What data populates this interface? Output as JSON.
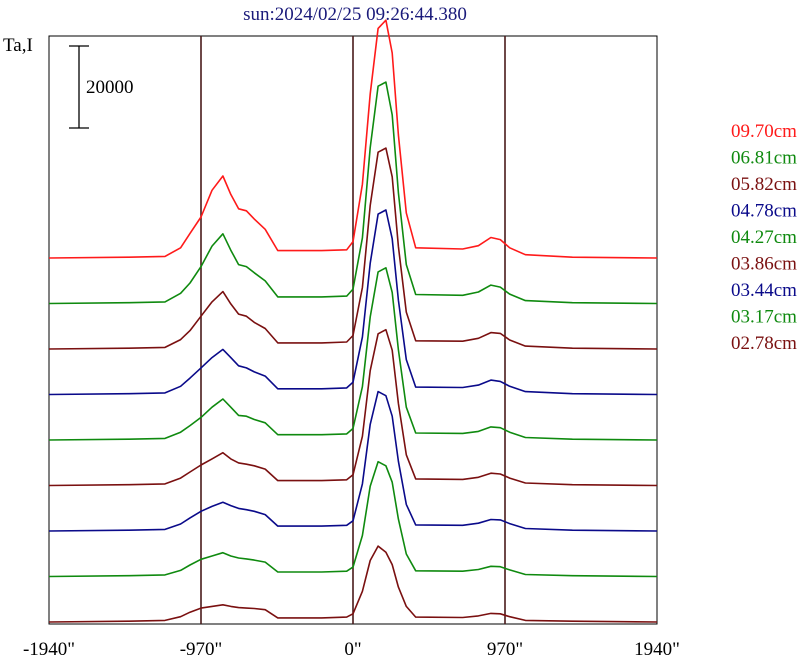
{
  "chart_data": {
    "type": "line",
    "title": "sun:2024/02/25 09:26:44.380",
    "ylabel": "Ta,I",
    "xlabel": "",
    "scale_bar_label": "20000",
    "scale_bar_value": 20000,
    "xlim": [
      -1940,
      1940
    ],
    "x_ticks": [
      -1940,
      -970,
      0,
      970,
      1940
    ],
    "x_tick_labels": [
      "-1940\"",
      "-970\"",
      "0\"",
      "970\"",
      "1940\""
    ],
    "vertical_markers": [
      -970,
      0,
      970
    ],
    "grid": false,
    "legend_placement": "right",
    "series": [
      {
        "name": "09.70cm",
        "color": "#ff1a1a",
        "baseline": 0,
        "points": [
          [
            -1940,
            0
          ],
          [
            -1430,
            200
          ],
          [
            -1200,
            400
          ],
          [
            -1100,
            2500
          ],
          [
            -1040,
            6000
          ],
          [
            -970,
            10000
          ],
          [
            -900,
            16500
          ],
          [
            -830,
            20000
          ],
          [
            -780,
            15500
          ],
          [
            -730,
            12000
          ],
          [
            -680,
            11500
          ],
          [
            -630,
            9500
          ],
          [
            -560,
            7000
          ],
          [
            -480,
            1800
          ],
          [
            -200,
            1800
          ],
          [
            -40,
            2000
          ],
          [
            0,
            4000
          ],
          [
            60,
            18000
          ],
          [
            110,
            40000
          ],
          [
            160,
            56000
          ],
          [
            210,
            58000
          ],
          [
            250,
            50000
          ],
          [
            290,
            30000
          ],
          [
            340,
            11000
          ],
          [
            400,
            2500
          ],
          [
            700,
            2200
          ],
          [
            800,
            3000
          ],
          [
            880,
            5000
          ],
          [
            940,
            4500
          ],
          [
            1000,
            2500
          ],
          [
            1100,
            800
          ],
          [
            1400,
            200
          ],
          [
            1940,
            0
          ]
        ]
      },
      {
        "name": "06.81cm",
        "color": "#0f8a0f",
        "baseline": 0,
        "points": [
          [
            -1940,
            0
          ],
          [
            -1430,
            200
          ],
          [
            -1200,
            400
          ],
          [
            -1100,
            2500
          ],
          [
            -1040,
            5000
          ],
          [
            -970,
            9000
          ],
          [
            -900,
            14000
          ],
          [
            -830,
            17000
          ],
          [
            -780,
            13000
          ],
          [
            -730,
            9500
          ],
          [
            -680,
            9000
          ],
          [
            -630,
            7500
          ],
          [
            -560,
            5500
          ],
          [
            -480,
            1600
          ],
          [
            -200,
            1600
          ],
          [
            -40,
            1800
          ],
          [
            0,
            3500
          ],
          [
            60,
            16000
          ],
          [
            110,
            38000
          ],
          [
            160,
            53000
          ],
          [
            210,
            54000
          ],
          [
            250,
            46000
          ],
          [
            290,
            27000
          ],
          [
            340,
            9500
          ],
          [
            400,
            2200
          ],
          [
            700,
            2000
          ],
          [
            800,
            2800
          ],
          [
            880,
            4500
          ],
          [
            940,
            4000
          ],
          [
            1000,
            2300
          ],
          [
            1100,
            700
          ],
          [
            1400,
            200
          ],
          [
            1940,
            0
          ]
        ]
      },
      {
        "name": "05.82cm",
        "color": "#7a1010",
        "baseline": 0,
        "points": [
          [
            -1940,
            0
          ],
          [
            -1430,
            200
          ],
          [
            -1200,
            400
          ],
          [
            -1100,
            2300
          ],
          [
            -1040,
            4500
          ],
          [
            -970,
            8000
          ],
          [
            -900,
            11500
          ],
          [
            -830,
            14000
          ],
          [
            -780,
            11000
          ],
          [
            -730,
            8500
          ],
          [
            -680,
            8000
          ],
          [
            -630,
            6500
          ],
          [
            -560,
            5000
          ],
          [
            -480,
            1500
          ],
          [
            -200,
            1500
          ],
          [
            -40,
            1700
          ],
          [
            0,
            3300
          ],
          [
            60,
            15000
          ],
          [
            110,
            35000
          ],
          [
            160,
            48000
          ],
          [
            210,
            49000
          ],
          [
            250,
            42000
          ],
          [
            290,
            25000
          ],
          [
            340,
            9000
          ],
          [
            400,
            2000
          ],
          [
            700,
            1900
          ],
          [
            800,
            2600
          ],
          [
            880,
            4000
          ],
          [
            940,
            3800
          ],
          [
            1000,
            2200
          ],
          [
            1100,
            700
          ],
          [
            1400,
            200
          ],
          [
            1940,
            0
          ]
        ]
      },
      {
        "name": "04.78cm",
        "color": "#0a0a8a",
        "baseline": 0,
        "points": [
          [
            -1940,
            0
          ],
          [
            -1430,
            200
          ],
          [
            -1200,
            400
          ],
          [
            -1100,
            2000
          ],
          [
            -1040,
            4000
          ],
          [
            -970,
            6500
          ],
          [
            -900,
            9000
          ],
          [
            -830,
            11000
          ],
          [
            -780,
            9000
          ],
          [
            -730,
            7000
          ],
          [
            -680,
            6500
          ],
          [
            -630,
            5500
          ],
          [
            -560,
            4500
          ],
          [
            -480,
            1400
          ],
          [
            -200,
            1400
          ],
          [
            -40,
            1600
          ],
          [
            0,
            3000
          ],
          [
            60,
            14000
          ],
          [
            110,
            32000
          ],
          [
            160,
            44000
          ],
          [
            210,
            45000
          ],
          [
            250,
            38000
          ],
          [
            290,
            23000
          ],
          [
            340,
            8500
          ],
          [
            400,
            1800
          ],
          [
            700,
            1700
          ],
          [
            800,
            2300
          ],
          [
            880,
            3500
          ],
          [
            940,
            3200
          ],
          [
            1000,
            2000
          ],
          [
            1100,
            700
          ],
          [
            1400,
            200
          ],
          [
            1940,
            0
          ]
        ]
      },
      {
        "name": "04.27cm",
        "color": "#0f8a0f",
        "baseline": 0,
        "points": [
          [
            -1940,
            0
          ],
          [
            -1430,
            200
          ],
          [
            -1200,
            400
          ],
          [
            -1100,
            1900
          ],
          [
            -1040,
            3500
          ],
          [
            -970,
            5500
          ],
          [
            -900,
            8000
          ],
          [
            -830,
            10000
          ],
          [
            -780,
            8000
          ],
          [
            -730,
            6000
          ],
          [
            -680,
            5800
          ],
          [
            -630,
            5000
          ],
          [
            -560,
            4200
          ],
          [
            -480,
            1300
          ],
          [
            -200,
            1300
          ],
          [
            -40,
            1500
          ],
          [
            0,
            2800
          ],
          [
            60,
            13000
          ],
          [
            110,
            30000
          ],
          [
            160,
            41000
          ],
          [
            210,
            42000
          ],
          [
            250,
            36000
          ],
          [
            290,
            22000
          ],
          [
            340,
            8000
          ],
          [
            400,
            1700
          ],
          [
            700,
            1600
          ],
          [
            800,
            2100
          ],
          [
            880,
            3200
          ],
          [
            940,
            3000
          ],
          [
            1000,
            1900
          ],
          [
            1100,
            600
          ],
          [
            1400,
            200
          ],
          [
            1940,
            0
          ]
        ]
      },
      {
        "name": "03.86cm",
        "color": "#7a1010",
        "baseline": 0,
        "points": [
          [
            -1940,
            0
          ],
          [
            -1430,
            200
          ],
          [
            -1200,
            400
          ],
          [
            -1100,
            1800
          ],
          [
            -1040,
            3300
          ],
          [
            -970,
            5000
          ],
          [
            -900,
            6500
          ],
          [
            -830,
            8000
          ],
          [
            -780,
            6500
          ],
          [
            -730,
            5500
          ],
          [
            -680,
            5200
          ],
          [
            -630,
            4800
          ],
          [
            -560,
            4000
          ],
          [
            -480,
            1200
          ],
          [
            -200,
            1200
          ],
          [
            -40,
            1400
          ],
          [
            0,
            2600
          ],
          [
            60,
            12000
          ],
          [
            110,
            28000
          ],
          [
            160,
            37000
          ],
          [
            210,
            38000
          ],
          [
            250,
            33000
          ],
          [
            290,
            20000
          ],
          [
            340,
            7500
          ],
          [
            400,
            1600
          ],
          [
            700,
            1500
          ],
          [
            800,
            2000
          ],
          [
            880,
            3000
          ],
          [
            940,
            2800
          ],
          [
            1000,
            1800
          ],
          [
            1100,
            600
          ],
          [
            1400,
            200
          ],
          [
            1940,
            0
          ]
        ]
      },
      {
        "name": "03.44cm",
        "color": "#0a0a8a",
        "baseline": 0,
        "points": [
          [
            -1940,
            0
          ],
          [
            -1430,
            200
          ],
          [
            -1200,
            400
          ],
          [
            -1100,
            1700
          ],
          [
            -1040,
            3200
          ],
          [
            -970,
            4800
          ],
          [
            -900,
            6000
          ],
          [
            -830,
            7000
          ],
          [
            -780,
            6200
          ],
          [
            -730,
            5500
          ],
          [
            -680,
            5200
          ],
          [
            -630,
            4800
          ],
          [
            -560,
            4000
          ],
          [
            -480,
            1200
          ],
          [
            -200,
            1200
          ],
          [
            -40,
            1400
          ],
          [
            0,
            2500
          ],
          [
            60,
            11500
          ],
          [
            110,
            26000
          ],
          [
            160,
            34000
          ],
          [
            210,
            33000
          ],
          [
            250,
            28000
          ],
          [
            290,
            17000
          ],
          [
            340,
            6500
          ],
          [
            400,
            1500
          ],
          [
            700,
            1400
          ],
          [
            800,
            1900
          ],
          [
            880,
            2800
          ],
          [
            940,
            2700
          ],
          [
            1000,
            1800
          ],
          [
            1100,
            600
          ],
          [
            1400,
            200
          ],
          [
            1940,
            0
          ]
        ]
      },
      {
        "name": "03.17cm",
        "color": "#0f8a0f",
        "baseline": 0,
        "points": [
          [
            -1940,
            0
          ],
          [
            -1430,
            200
          ],
          [
            -1200,
            400
          ],
          [
            -1100,
            1500
          ],
          [
            -1040,
            2800
          ],
          [
            -970,
            4200
          ],
          [
            -900,
            5000
          ],
          [
            -830,
            5800
          ],
          [
            -780,
            5000
          ],
          [
            -730,
            4500
          ],
          [
            -680,
            4300
          ],
          [
            -630,
            4000
          ],
          [
            -560,
            3500
          ],
          [
            -480,
            1100
          ],
          [
            -200,
            1100
          ],
          [
            -40,
            1300
          ],
          [
            0,
            2300
          ],
          [
            60,
            10000
          ],
          [
            110,
            22000
          ],
          [
            160,
            28000
          ],
          [
            210,
            27000
          ],
          [
            250,
            23000
          ],
          [
            290,
            14000
          ],
          [
            340,
            5500
          ],
          [
            400,
            1400
          ],
          [
            700,
            1300
          ],
          [
            800,
            1700
          ],
          [
            880,
            2500
          ],
          [
            940,
            2400
          ],
          [
            1000,
            1600
          ],
          [
            1100,
            500
          ],
          [
            1400,
            200
          ],
          [
            1940,
            0
          ]
        ]
      },
      {
        "name": "02.78cm",
        "color": "#7a1010",
        "baseline": 0,
        "points": [
          [
            -1940,
            0
          ],
          [
            -1430,
            200
          ],
          [
            -1200,
            400
          ],
          [
            -1100,
            1300
          ],
          [
            -1040,
            2400
          ],
          [
            -970,
            3400
          ],
          [
            -900,
            3800
          ],
          [
            -830,
            4200
          ],
          [
            -780,
            3800
          ],
          [
            -730,
            3500
          ],
          [
            -680,
            3400
          ],
          [
            -630,
            3300
          ],
          [
            -560,
            3000
          ],
          [
            -480,
            1000
          ],
          [
            -200,
            1000
          ],
          [
            -40,
            1200
          ],
          [
            0,
            2000
          ],
          [
            60,
            7500
          ],
          [
            110,
            15000
          ],
          [
            160,
            18500
          ],
          [
            210,
            17000
          ],
          [
            250,
            14000
          ],
          [
            290,
            8500
          ],
          [
            340,
            3800
          ],
          [
            400,
            1200
          ],
          [
            700,
            1100
          ],
          [
            800,
            1500
          ],
          [
            880,
            2100
          ],
          [
            940,
            2000
          ],
          [
            1000,
            1300
          ],
          [
            1100,
            400
          ],
          [
            1400,
            200
          ],
          [
            1940,
            0
          ]
        ]
      }
    ]
  }
}
